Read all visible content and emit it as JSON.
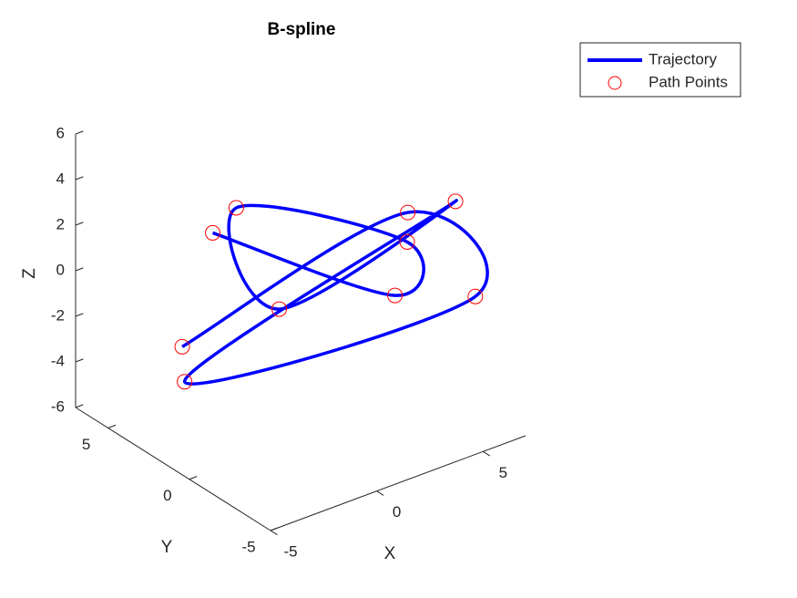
{
  "chart_data": {
    "type": "line3d",
    "title": "B-spline",
    "xlabel": "X",
    "ylabel": "Y",
    "zlabel": "Z",
    "xlim": [
      -5,
      7
    ],
    "ylim": [
      -5,
      7
    ],
    "zlim": [
      -6,
      6
    ],
    "xticks": [
      -5,
      0,
      5
    ],
    "yticks": [
      -5,
      0,
      5
    ],
    "zticks": [
      -6,
      -4,
      -2,
      0,
      2,
      4,
      6
    ],
    "legend_location": "northeast-outside",
    "trajectory": {
      "name": "Trajectory",
      "color": "#0000ff"
    },
    "series": [
      {
        "name": "Path Points",
        "color": "#ff0000",
        "marker": "circle",
        "x": [
          -1.3,
          3.3,
          5.1,
          -0.5,
          0.3,
          6.3,
          -2.7,
          6.7,
          6.5,
          -2.2
        ],
        "y": [
          3.4,
          -1.8,
          -0.2,
          3.0,
          1.4,
          -1.6,
          3.3,
          -2.3,
          1.6,
          4.1
        ],
        "z": [
          2,
          0,
          1,
          3,
          -1,
          3,
          -4,
          -1,
          1,
          -3
        ]
      }
    ]
  }
}
